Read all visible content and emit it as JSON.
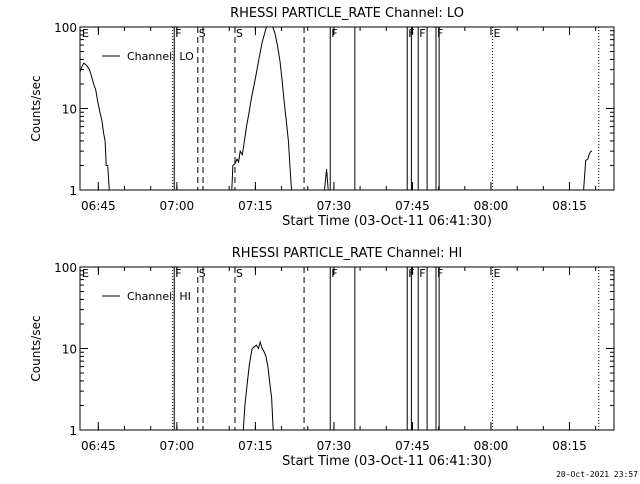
{
  "footer": {
    "timestamp": "20-Oct-2021 23:57"
  },
  "chart_data": [
    {
      "type": "line",
      "title": "RHESSI PARTICLE_RATE Channel: LO",
      "xlabel": "Start Time (03-Oct-11 06:41:30)",
      "ylabel": "Counts/sec",
      "yscale": "log",
      "ylim": [
        1,
        100
      ],
      "yticks": [
        "1",
        "10",
        "100"
      ],
      "x_unit": "minutes since 06:41:30",
      "xlim": [
        0,
        102
      ],
      "xticks": [
        {
          "x": 3.5,
          "label": "06:45"
        },
        {
          "x": 18.5,
          "label": "07:00"
        },
        {
          "x": 33.5,
          "label": "07:15"
        },
        {
          "x": 48.5,
          "label": "07:30"
        },
        {
          "x": 63.5,
          "label": "07:45"
        },
        {
          "x": 78.5,
          "label": "08:00"
        },
        {
          "x": 93.5,
          "label": "08:15"
        }
      ],
      "legend": {
        "position": "top-left",
        "entries": [
          "Channel: LO"
        ]
      },
      "series": [
        {
          "name": "Channel: LO",
          "segments": [
            [
              [
                0,
                28
              ],
              [
                0.3,
                32
              ],
              [
                0.7,
                36
              ],
              [
                1,
                35
              ],
              [
                1.4,
                33
              ],
              [
                1.8,
                30
              ],
              [
                2.2,
                25
              ],
              [
                2.6,
                20
              ],
              [
                3,
                17
              ],
              [
                3.4,
                12
              ],
              [
                3.8,
                9
              ],
              [
                4.2,
                7
              ],
              [
                4.5,
                5
              ],
              [
                4.8,
                4
              ],
              [
                5,
                2
              ],
              [
                5.3,
                2
              ],
              [
                5.6,
                1
              ]
            ],
            [
              [
                29,
                1
              ],
              [
                29.2,
                2
              ],
              [
                29.6,
                2.1
              ],
              [
                30,
                2.4
              ],
              [
                30.3,
                2.2
              ],
              [
                30.6,
                3
              ],
              [
                31,
                2.7
              ],
              [
                31.4,
                4
              ],
              [
                31.8,
                6
              ],
              [
                32.3,
                9
              ],
              [
                32.8,
                14
              ],
              [
                33.3,
                20
              ],
              [
                33.8,
                30
              ],
              [
                34.3,
                45
              ],
              [
                34.8,
                65
              ],
              [
                35.3,
                85
              ],
              [
                35.6,
                100
              ]
            ],
            [
              [
                36.8,
                100
              ],
              [
                37.2,
                85
              ],
              [
                37.7,
                60
              ],
              [
                38.2,
                38
              ],
              [
                38.6,
                22
              ],
              [
                39,
                12
              ],
              [
                39.4,
                7
              ],
              [
                39.8,
                4
              ],
              [
                40.1,
                2
              ],
              [
                40.4,
                1
              ]
            ],
            [
              [
                46.7,
                1
              ],
              [
                47.1,
                1.8
              ],
              [
                47.4,
                1
              ]
            ],
            [
              [
                96.2,
                1
              ],
              [
                96.6,
                2.3
              ],
              [
                97,
                2.4
              ],
              [
                97.3,
                2.8
              ],
              [
                97.6,
                3
              ],
              [
                97.8,
                3
              ]
            ]
          ]
        }
      ],
      "events": [
        {
          "x": 17.7,
          "label": "",
          "style": "dotted"
        },
        {
          "x": 18.0,
          "label": "F",
          "style": "solid"
        },
        {
          "x": 22.5,
          "label": "S",
          "style": "dashed"
        },
        {
          "x": 23.5,
          "label": "",
          "style": "dashed"
        },
        {
          "x": 29.6,
          "label": "S",
          "style": "dashed"
        },
        {
          "x": 42.8,
          "label": "",
          "style": "dashed"
        },
        {
          "x": 47.8,
          "label": "F",
          "style": "solid"
        },
        {
          "x": 52.5,
          "label": "",
          "style": "solid"
        },
        {
          "x": 62.5,
          "label": "F",
          "style": "solid"
        },
        {
          "x": 63.3,
          "label": "",
          "style": "solid"
        },
        {
          "x": 64.6,
          "label": "F",
          "style": "solid"
        },
        {
          "x": 66.3,
          "label": "",
          "style": "solid"
        },
        {
          "x": 68.0,
          "label": "F",
          "style": "solid"
        },
        {
          "x": 68.6,
          "label": "",
          "style": "solid"
        },
        {
          "x": 78.8,
          "label": "E",
          "style": "dotted"
        },
        {
          "x": 99.1,
          "label": "",
          "style": "dotted"
        }
      ],
      "start_marker": {
        "label": "E"
      }
    },
    {
      "type": "line",
      "title": "RHESSI PARTICLE_RATE Channel: HI",
      "xlabel": "Start Time (03-Oct-11 06:41:30)",
      "ylabel": "Counts/sec",
      "yscale": "log",
      "ylim": [
        1,
        100
      ],
      "yticks": [
        "1",
        "10",
        "100"
      ],
      "x_unit": "minutes since 06:41:30",
      "xlim": [
        0,
        102
      ],
      "xticks": [
        {
          "x": 3.5,
          "label": "06:45"
        },
        {
          "x": 18.5,
          "label": "07:00"
        },
        {
          "x": 33.5,
          "label": "07:15"
        },
        {
          "x": 48.5,
          "label": "07:30"
        },
        {
          "x": 63.5,
          "label": "07:45"
        },
        {
          "x": 78.5,
          "label": "08:00"
        },
        {
          "x": 93.5,
          "label": "08:15"
        }
      ],
      "legend": {
        "position": "top-left",
        "entries": [
          "Channel: HI"
        ]
      },
      "series": [
        {
          "name": "Channel: HI",
          "segments": [
            [
              [
                31.2,
                1
              ],
              [
                31.5,
                2
              ],
              [
                31.9,
                3.5
              ],
              [
                32.3,
                6
              ],
              [
                32.6,
                8
              ],
              [
                32.9,
                10
              ],
              [
                33.3,
                10.5
              ],
              [
                33.7,
                11
              ],
              [
                34.1,
                10
              ],
              [
                34.4,
                12
              ],
              [
                34.8,
                10
              ],
              [
                35.2,
                9
              ],
              [
                35.5,
                8
              ],
              [
                35.9,
                6
              ],
              [
                36.2,
                4
              ],
              [
                36.6,
                2.5
              ],
              [
                36.9,
                1
              ]
            ]
          ]
        }
      ],
      "events": [
        {
          "x": 17.7,
          "label": "",
          "style": "dotted"
        },
        {
          "x": 18.0,
          "label": "F",
          "style": "solid"
        },
        {
          "x": 22.5,
          "label": "S",
          "style": "dashed"
        },
        {
          "x": 23.5,
          "label": "",
          "style": "dashed"
        },
        {
          "x": 29.6,
          "label": "S",
          "style": "dashed"
        },
        {
          "x": 42.8,
          "label": "",
          "style": "dashed"
        },
        {
          "x": 47.8,
          "label": "F",
          "style": "solid"
        },
        {
          "x": 52.5,
          "label": "",
          "style": "solid"
        },
        {
          "x": 62.5,
          "label": "F",
          "style": "solid"
        },
        {
          "x": 63.3,
          "label": "",
          "style": "solid"
        },
        {
          "x": 64.6,
          "label": "F",
          "style": "solid"
        },
        {
          "x": 66.3,
          "label": "",
          "style": "solid"
        },
        {
          "x": 68.0,
          "label": "F",
          "style": "solid"
        },
        {
          "x": 68.6,
          "label": "",
          "style": "solid"
        },
        {
          "x": 78.8,
          "label": "E",
          "style": "dotted"
        },
        {
          "x": 99.1,
          "label": "",
          "style": "dotted"
        }
      ],
      "start_marker": {
        "label": "E"
      }
    }
  ]
}
